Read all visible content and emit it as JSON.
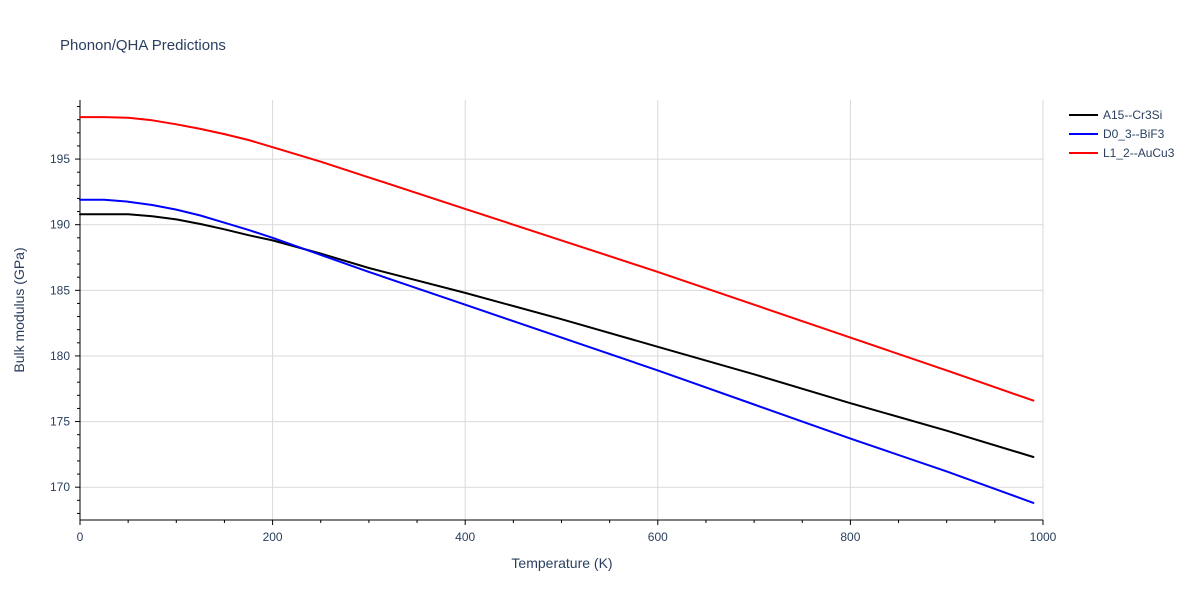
{
  "chart_data": {
    "type": "line",
    "title": "Phonon/QHA Predictions",
    "xlabel": "Temperature (K)",
    "ylabel": "Bulk modulus (GPa)",
    "xlim": [
      0,
      1000
    ],
    "ylim": [
      167.5,
      199.5
    ],
    "x_ticks": [
      0,
      200,
      400,
      600,
      800,
      1000
    ],
    "y_ticks": [
      170,
      175,
      180,
      185,
      190,
      195
    ],
    "grid": true,
    "legend_position": "top-right",
    "series": [
      {
        "name": "A15--Cr3Si",
        "color": "#000000",
        "x": [
          0,
          25,
          50,
          75,
          100,
          125,
          150,
          175,
          200,
          250,
          300,
          400,
          500,
          600,
          700,
          800,
          900,
          990
        ],
        "y": [
          190.8,
          190.8,
          190.8,
          190.65,
          190.4,
          190.05,
          189.65,
          189.2,
          188.8,
          187.8,
          186.7,
          184.8,
          182.8,
          180.7,
          178.6,
          176.4,
          174.3,
          172.3
        ]
      },
      {
        "name": "D0_3--BiF3",
        "color": "#0000ff",
        "x": [
          0,
          25,
          50,
          75,
          100,
          125,
          150,
          175,
          200,
          250,
          300,
          400,
          500,
          600,
          700,
          800,
          900,
          990
        ],
        "y": [
          191.9,
          191.9,
          191.75,
          191.5,
          191.15,
          190.7,
          190.15,
          189.6,
          189.0,
          187.7,
          186.4,
          183.9,
          181.4,
          178.9,
          176.3,
          173.7,
          171.2,
          168.8
        ]
      },
      {
        "name": "L1_2--AuCu3",
        "color": "#ff0000",
        "x": [
          0,
          25,
          50,
          75,
          100,
          125,
          150,
          175,
          200,
          250,
          300,
          400,
          500,
          600,
          700,
          800,
          900,
          990
        ],
        "y": [
          198.2,
          198.2,
          198.15,
          197.95,
          197.65,
          197.3,
          196.9,
          196.45,
          195.9,
          194.8,
          193.6,
          191.2,
          188.8,
          186.4,
          183.9,
          181.4,
          178.9,
          176.6
        ]
      }
    ]
  }
}
